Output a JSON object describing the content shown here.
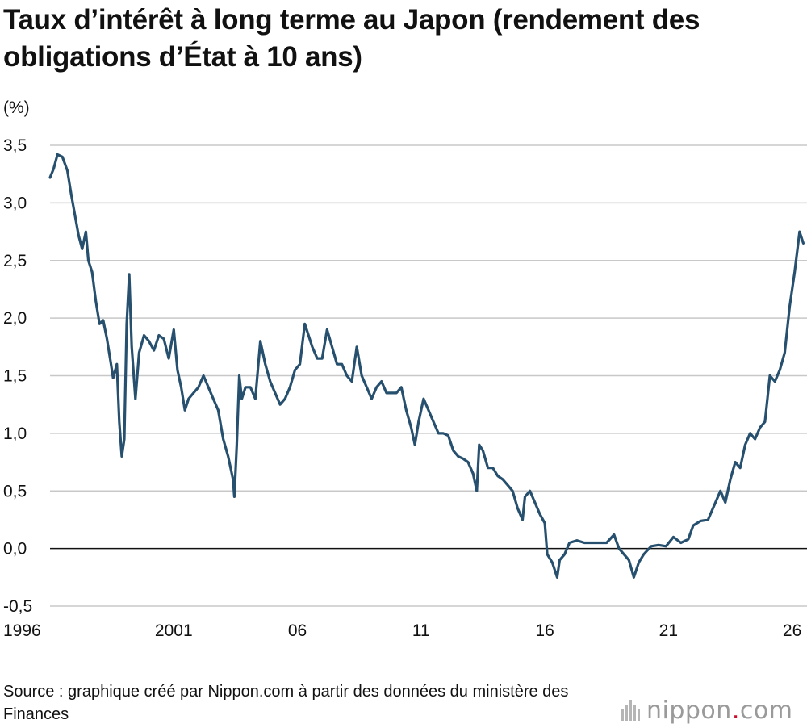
{
  "chart_data": {
    "type": "line",
    "title": "Taux d’intérêt à long terme au Japon (rendement des obligations d’État à 10 ans)",
    "unit_label": "(%)",
    "xlim": [
      1996.0,
      2026.6
    ],
    "ylim": [
      -0.5,
      3.5
    ],
    "x_ticks": [
      {
        "label": "1996",
        "value": 1996
      },
      {
        "label": "2001",
        "value": 2001
      },
      {
        "label": "06",
        "value": 2006
      },
      {
        "label": "11",
        "value": 2011
      },
      {
        "label": "16",
        "value": 2016
      },
      {
        "label": "21",
        "value": 2021
      },
      {
        "label": "26",
        "value": 2026
      }
    ],
    "y_ticks": [
      {
        "label": "3,5",
        "value": 3.5
      },
      {
        "label": "3,0",
        "value": 3.0
      },
      {
        "label": "2,5",
        "value": 2.5
      },
      {
        "label": "2,0",
        "value": 2.0
      },
      {
        "label": "1,5",
        "value": 1.5
      },
      {
        "label": "1,0",
        "value": 1.0
      },
      {
        "label": "0,5",
        "value": 0.5
      },
      {
        "label": "0,0",
        "value": 0.0
      },
      {
        "label": "-0,5",
        "value": -0.5
      }
    ],
    "grid": true,
    "series": [
      {
        "color": "#27506f",
        "points": [
          [
            1996.0,
            3.22
          ],
          [
            1996.15,
            3.3
          ],
          [
            1996.3,
            3.42
          ],
          [
            1996.5,
            3.4
          ],
          [
            1996.7,
            3.28
          ],
          [
            1996.85,
            3.08
          ],
          [
            1997.0,
            2.9
          ],
          [
            1997.15,
            2.72
          ],
          [
            1997.3,
            2.6
          ],
          [
            1997.45,
            2.75
          ],
          [
            1997.55,
            2.5
          ],
          [
            1997.7,
            2.4
          ],
          [
            1997.85,
            2.15
          ],
          [
            1998.0,
            1.95
          ],
          [
            1998.15,
            1.98
          ],
          [
            1998.3,
            1.82
          ],
          [
            1998.45,
            1.62
          ],
          [
            1998.55,
            1.48
          ],
          [
            1998.7,
            1.6
          ],
          [
            1998.8,
            1.1
          ],
          [
            1998.9,
            0.8
          ],
          [
            1999.0,
            0.95
          ],
          [
            1999.1,
            1.95
          ],
          [
            1999.2,
            2.38
          ],
          [
            1999.3,
            1.75
          ],
          [
            1999.45,
            1.3
          ],
          [
            1999.6,
            1.7
          ],
          [
            1999.8,
            1.85
          ],
          [
            2000.0,
            1.8
          ],
          [
            2000.2,
            1.72
          ],
          [
            2000.4,
            1.85
          ],
          [
            2000.6,
            1.82
          ],
          [
            2000.8,
            1.65
          ],
          [
            2001.0,
            1.9
          ],
          [
            2001.15,
            1.55
          ],
          [
            2001.3,
            1.4
          ],
          [
            2001.45,
            1.2
          ],
          [
            2001.6,
            1.3
          ],
          [
            2001.8,
            1.35
          ],
          [
            2002.0,
            1.4
          ],
          [
            2002.2,
            1.5
          ],
          [
            2002.4,
            1.4
          ],
          [
            2002.6,
            1.3
          ],
          [
            2002.8,
            1.2
          ],
          [
            2003.0,
            0.95
          ],
          [
            2003.2,
            0.8
          ],
          [
            2003.4,
            0.6
          ],
          [
            2003.45,
            0.45
          ],
          [
            2003.55,
            0.9
          ],
          [
            2003.65,
            1.5
          ],
          [
            2003.75,
            1.3
          ],
          [
            2003.9,
            1.4
          ],
          [
            2004.1,
            1.4
          ],
          [
            2004.3,
            1.3
          ],
          [
            2004.5,
            1.8
          ],
          [
            2004.7,
            1.6
          ],
          [
            2004.9,
            1.45
          ],
          [
            2005.1,
            1.35
          ],
          [
            2005.3,
            1.25
          ],
          [
            2005.5,
            1.3
          ],
          [
            2005.7,
            1.4
          ],
          [
            2005.9,
            1.55
          ],
          [
            2006.1,
            1.6
          ],
          [
            2006.3,
            1.95
          ],
          [
            2006.45,
            1.85
          ],
          [
            2006.6,
            1.75
          ],
          [
            2006.8,
            1.65
          ],
          [
            2007.0,
            1.65
          ],
          [
            2007.2,
            1.9
          ],
          [
            2007.4,
            1.75
          ],
          [
            2007.6,
            1.6
          ],
          [
            2007.8,
            1.6
          ],
          [
            2008.0,
            1.5
          ],
          [
            2008.2,
            1.45
          ],
          [
            2008.4,
            1.75
          ],
          [
            2008.6,
            1.5
          ],
          [
            2008.8,
            1.4
          ],
          [
            2009.0,
            1.3
          ],
          [
            2009.2,
            1.4
          ],
          [
            2009.4,
            1.45
          ],
          [
            2009.6,
            1.35
          ],
          [
            2009.8,
            1.35
          ],
          [
            2010.0,
            1.35
          ],
          [
            2010.2,
            1.4
          ],
          [
            2010.4,
            1.2
          ],
          [
            2010.6,
            1.05
          ],
          [
            2010.75,
            0.9
          ],
          [
            2010.9,
            1.1
          ],
          [
            2011.1,
            1.3
          ],
          [
            2011.3,
            1.2
          ],
          [
            2011.5,
            1.1
          ],
          [
            2011.7,
            1.0
          ],
          [
            2011.9,
            1.0
          ],
          [
            2012.1,
            0.98
          ],
          [
            2012.3,
            0.85
          ],
          [
            2012.5,
            0.8
          ],
          [
            2012.7,
            0.78
          ],
          [
            2012.9,
            0.75
          ],
          [
            2013.1,
            0.65
          ],
          [
            2013.25,
            0.5
          ],
          [
            2013.35,
            0.9
          ],
          [
            2013.5,
            0.85
          ],
          [
            2013.7,
            0.7
          ],
          [
            2013.9,
            0.7
          ],
          [
            2014.1,
            0.63
          ],
          [
            2014.3,
            0.6
          ],
          [
            2014.5,
            0.55
          ],
          [
            2014.7,
            0.5
          ],
          [
            2014.9,
            0.35
          ],
          [
            2015.1,
            0.25
          ],
          [
            2015.2,
            0.45
          ],
          [
            2015.4,
            0.5
          ],
          [
            2015.6,
            0.4
          ],
          [
            2015.8,
            0.3
          ],
          [
            2016.0,
            0.22
          ],
          [
            2016.1,
            -0.05
          ],
          [
            2016.3,
            -0.12
          ],
          [
            2016.5,
            -0.25
          ],
          [
            2016.6,
            -0.1
          ],
          [
            2016.8,
            -0.05
          ],
          [
            2017.0,
            0.05
          ],
          [
            2017.3,
            0.07
          ],
          [
            2017.6,
            0.05
          ],
          [
            2017.9,
            0.05
          ],
          [
            2018.2,
            0.05
          ],
          [
            2018.5,
            0.05
          ],
          [
            2018.8,
            0.12
          ],
          [
            2019.0,
            0.0
          ],
          [
            2019.2,
            -0.05
          ],
          [
            2019.4,
            -0.1
          ],
          [
            2019.6,
            -0.25
          ],
          [
            2019.8,
            -0.12
          ],
          [
            2020.0,
            -0.05
          ],
          [
            2020.3,
            0.02
          ],
          [
            2020.6,
            0.03
          ],
          [
            2020.9,
            0.02
          ],
          [
            2021.2,
            0.1
          ],
          [
            2021.5,
            0.05
          ],
          [
            2021.8,
            0.08
          ],
          [
            2022.0,
            0.2
          ],
          [
            2022.3,
            0.24
          ],
          [
            2022.6,
            0.25
          ],
          [
            2022.9,
            0.4
          ],
          [
            2023.1,
            0.5
          ],
          [
            2023.3,
            0.4
          ],
          [
            2023.5,
            0.6
          ],
          [
            2023.7,
            0.75
          ],
          [
            2023.9,
            0.7
          ],
          [
            2024.1,
            0.9
          ],
          [
            2024.3,
            1.0
          ],
          [
            2024.5,
            0.95
          ],
          [
            2024.7,
            1.05
          ],
          [
            2024.9,
            1.1
          ],
          [
            2025.1,
            1.5
          ],
          [
            2025.3,
            1.45
          ],
          [
            2025.5,
            1.55
          ],
          [
            2025.7,
            1.7
          ],
          [
            2025.9,
            2.1
          ],
          [
            2026.1,
            2.4
          ],
          [
            2026.3,
            2.75
          ],
          [
            2026.45,
            2.65
          ]
        ]
      }
    ]
  },
  "source": "Source : graphique créé par Nippon.com à partir des données du ministère des Finances",
  "logo": {
    "text": "nippon",
    "dot": ".",
    "tld": "com"
  }
}
